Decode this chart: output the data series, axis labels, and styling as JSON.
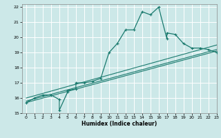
{
  "xlabel": "Humidex (Indice chaleur)",
  "ylabel": "",
  "xlim": [
    -0.5,
    23
  ],
  "ylim": [
    15,
    22.2
  ],
  "xticks": [
    0,
    1,
    2,
    3,
    4,
    5,
    6,
    7,
    8,
    9,
    10,
    11,
    12,
    13,
    14,
    15,
    16,
    17,
    18,
    19,
    20,
    21,
    22,
    23
  ],
  "yticks": [
    15,
    16,
    17,
    18,
    19,
    20,
    21,
    22
  ],
  "bg_color": "#cce8e8",
  "line_color": "#1a7a6e",
  "grid_color": "#ffffff",
  "series1_x": [
    0,
    1,
    2,
    3,
    4,
    4,
    5,
    5,
    6,
    6,
    7,
    8,
    9,
    10,
    11,
    12,
    13,
    14,
    15,
    16,
    17,
    17,
    18,
    19,
    20,
    21,
    22,
    23
  ],
  "series1_y": [
    15.7,
    16.0,
    16.2,
    16.2,
    15.9,
    15.2,
    16.4,
    16.5,
    16.6,
    17.0,
    17.0,
    17.1,
    17.3,
    19.0,
    19.6,
    20.5,
    20.5,
    21.7,
    21.5,
    22.0,
    19.9,
    20.3,
    20.2,
    19.6,
    19.3,
    19.3,
    19.2,
    19.0
  ],
  "series2_x": [
    0,
    23
  ],
  "series2_y": [
    15.7,
    19.1
  ],
  "series3_x": [
    0,
    23
  ],
  "series3_y": [
    15.8,
    19.2
  ],
  "series4_x": [
    0,
    23
  ],
  "series4_y": [
    16.0,
    19.5
  ]
}
